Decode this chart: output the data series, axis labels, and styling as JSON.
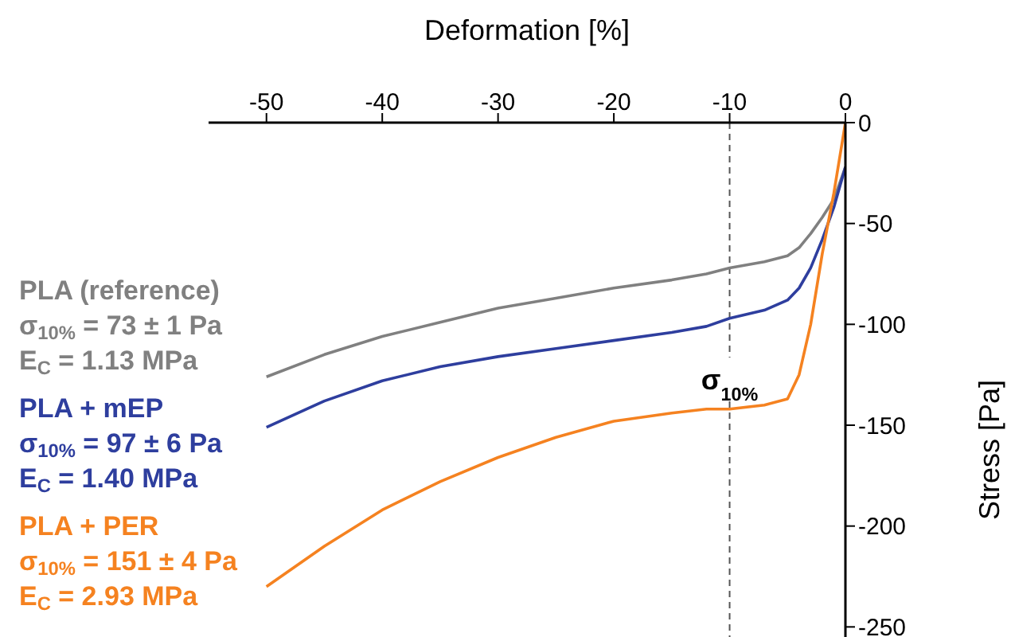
{
  "chart_data": {
    "type": "line",
    "xlabel": "Deformation [%]",
    "ylabel": "Stress [Pa]",
    "xlim": [
      -55,
      0
    ],
    "xticks": [
      -50,
      -40,
      -30,
      -20,
      -10,
      0
    ],
    "ylim": [
      -255,
      0
    ],
    "yticks": [
      0,
      -50,
      -100,
      -150,
      -200,
      -250
    ],
    "x": [
      -50,
      -45,
      -40,
      -35,
      -30,
      -25,
      -20,
      -15,
      -12,
      -10,
      -7,
      -5,
      -4,
      -3,
      -2,
      -1,
      0
    ],
    "series": [
      {
        "name": "PLA (reference)",
        "color": "#808080",
        "values": [
          -126,
          -115,
          -106,
          -99,
          -92,
          -87,
          -82,
          -78,
          -75,
          -72,
          -69,
          -66,
          -62,
          -55,
          -47,
          -38,
          -22
        ]
      },
      {
        "name": "PLA + mEP",
        "color": "#2e3e9e",
        "values": [
          -151,
          -138,
          -128,
          -121,
          -116,
          -112,
          -108,
          -104,
          -101,
          -97,
          -93,
          -88,
          -82,
          -72,
          -58,
          -42,
          -22
        ]
      },
      {
        "name": "PLA + PER",
        "color": "#f58220",
        "values": [
          -230,
          -210,
          -192,
          -178,
          -166,
          -156,
          -148,
          -144,
          -142,
          -142,
          -140,
          -137,
          -125,
          -100,
          -65,
          -35,
          0
        ]
      }
    ],
    "annotations": [
      "σ$_{10%}$ = 73 ± 1 Pa",
      "E$_{C}$ = 1.13 MPa",
      "σ$_{10%}$ = 97 ± 6 Pa",
      "E$_{C}$ = 1.40 MPa",
      "σ$_{10%}$ = 151 ± 4 Pa",
      "E$_{C}$ = 2.93 MPa"
    ],
    "ref_lines": [
      {
        "axis": "x",
        "value": -10,
        "label": "σ$_{10%}$",
        "color": "#555555",
        "line_style": "dashed"
      }
    ],
    "legend": "left",
    "grid": false,
    "marker": "none",
    "line_style": "solid"
  }
}
